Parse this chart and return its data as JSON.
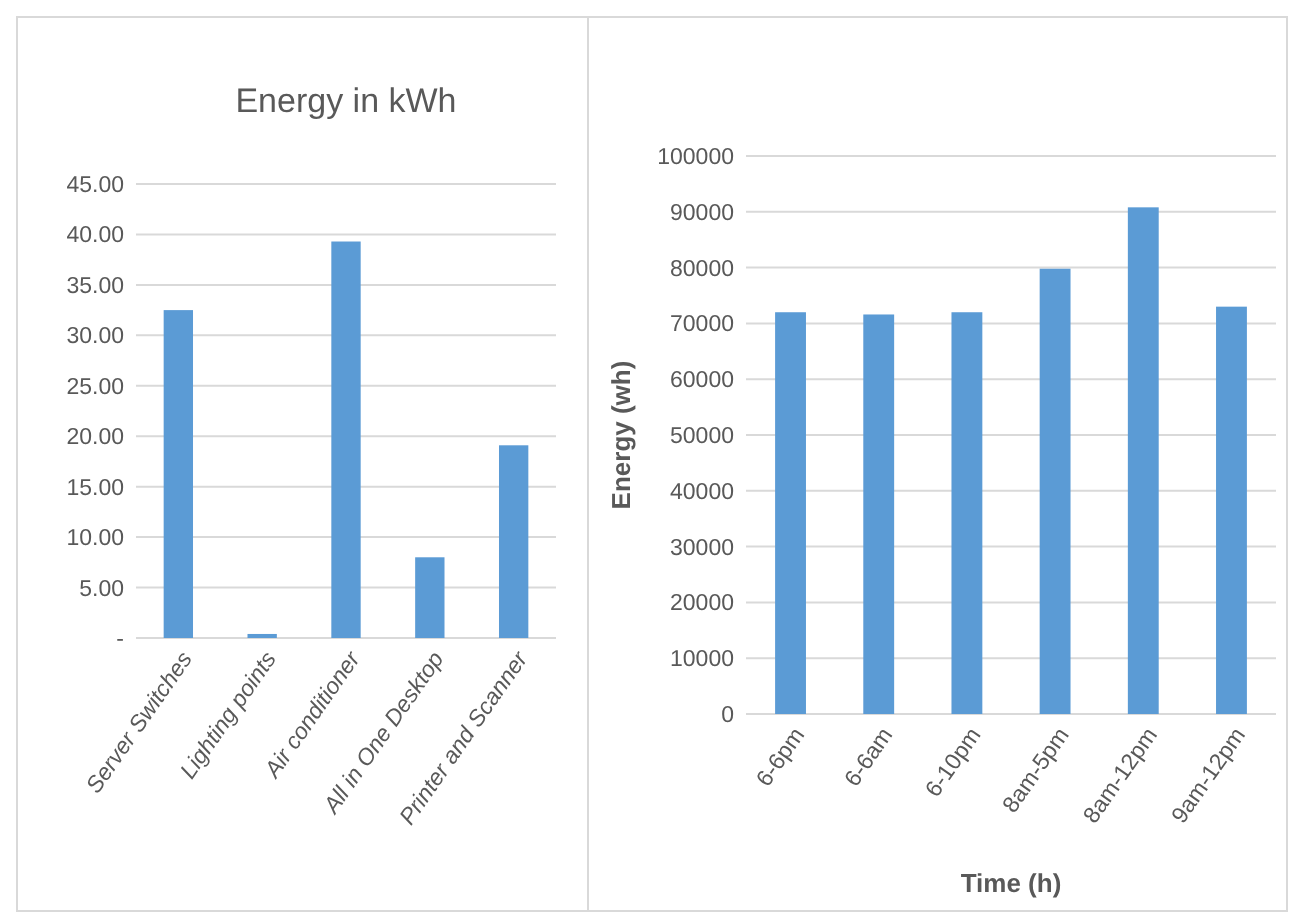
{
  "chart_data": [
    {
      "type": "bar",
      "title": "Energy in kWh",
      "categories": [
        "Server Switches",
        "Lighting points",
        "Air conditioner",
        "All in One Desktop",
        "Printer and Scanner"
      ],
      "values": [
        32.5,
        0.4,
        39.3,
        8.0,
        19.1
      ],
      "color": "#5b9bd5",
      "ylim": [
        0,
        45
      ],
      "yticks": [
        {
          "value": 0,
          "label": "-"
        },
        {
          "value": 5,
          "label": "5.00"
        },
        {
          "value": 10,
          "label": "10.00"
        },
        {
          "value": 15,
          "label": "15.00"
        },
        {
          "value": 20,
          "label": "20.00"
        },
        {
          "value": 25,
          "label": "25.00"
        },
        {
          "value": 30,
          "label": "30.00"
        },
        {
          "value": 35,
          "label": "35.00"
        },
        {
          "value": 40,
          "label": "40.00"
        },
        {
          "value": 45,
          "label": "45.00"
        }
      ],
      "grid": "y"
    },
    {
      "type": "bar",
      "xlabel": "Time (h)",
      "ylabel": "Energy (wh)",
      "categories": [
        "6-6pm",
        "6-6am",
        "6-10pm",
        "8am-5pm",
        "8am-12pm",
        "9am-12pm"
      ],
      "values": [
        72000,
        71600,
        72000,
        79800,
        90800,
        73000
      ],
      "color": "#5b9bd5",
      "ylim": [
        0,
        100000
      ],
      "yticks": [
        0,
        10000,
        20000,
        30000,
        40000,
        50000,
        60000,
        70000,
        80000,
        90000,
        100000
      ],
      "grid": "y"
    }
  ]
}
